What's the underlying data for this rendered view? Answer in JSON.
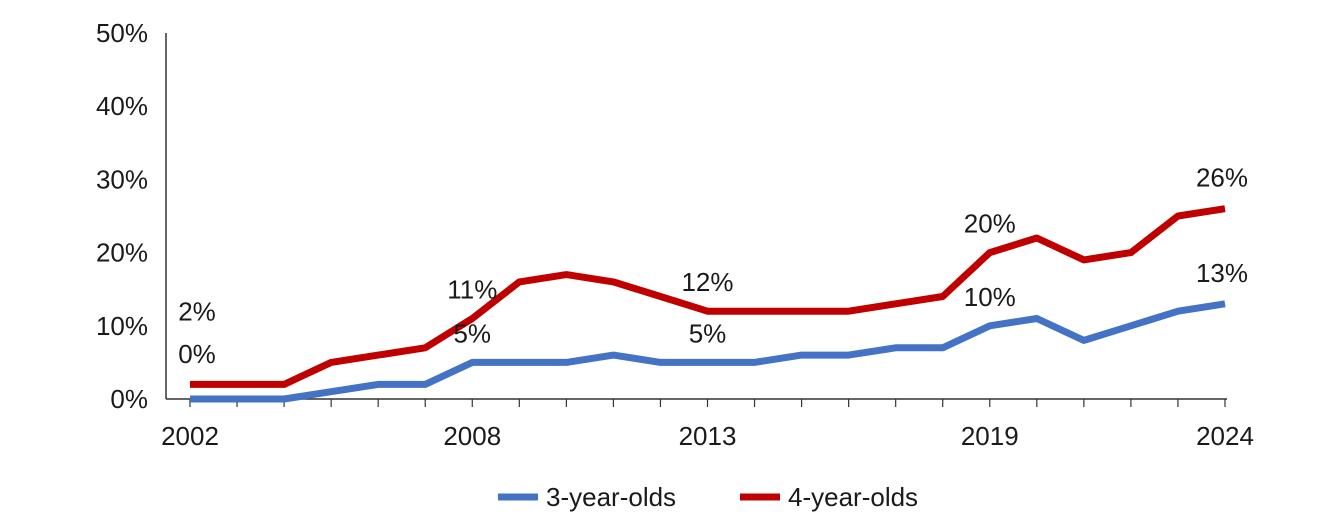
{
  "chart_data": {
    "type": "line",
    "x": [
      2002,
      2003,
      2004,
      2005,
      2006,
      2007,
      2008,
      2009,
      2010,
      2011,
      2012,
      2013,
      2014,
      2015,
      2016,
      2017,
      2018,
      2019,
      2020,
      2021,
      2022,
      2023,
      2024
    ],
    "x_tick_labels": [
      "2002",
      "2008",
      "2013",
      "2019",
      "2024"
    ],
    "x_ticks": [
      2002,
      2008,
      2013,
      2019,
      2024
    ],
    "y_tick_labels": [
      "0%",
      "10%",
      "20%",
      "30%",
      "40%",
      "50%"
    ],
    "ylim": [
      0,
      50
    ],
    "grid": false,
    "legend_position": "bottom",
    "series": [
      {
        "name": "3-year-olds",
        "color": "#4472c4",
        "values": [
          0,
          0,
          0,
          1,
          2,
          2,
          5,
          5,
          5,
          6,
          5,
          5,
          5,
          6,
          6,
          7,
          7,
          10,
          11,
          8,
          10,
          12,
          13
        ],
        "labels": [
          {
            "year": 2002,
            "text": "0%"
          },
          {
            "year": 2008,
            "text": "5%"
          },
          {
            "year": 2013,
            "text": "5%"
          },
          {
            "year": 2019,
            "text": "10%"
          },
          {
            "year": 2024,
            "text": "13%"
          }
        ]
      },
      {
        "name": "4-year-olds",
        "color": "#c00000",
        "values": [
          2,
          2,
          2,
          5,
          6,
          7,
          11,
          16,
          17,
          16,
          14,
          12,
          12,
          12,
          12,
          13,
          14,
          20,
          22,
          19,
          20,
          25,
          26
        ],
        "labels": [
          {
            "year": 2002,
            "text": "2%"
          },
          {
            "year": 2008,
            "text": "11%"
          },
          {
            "year": 2013,
            "text": "12%"
          },
          {
            "year": 2019,
            "text": "20%"
          },
          {
            "year": 2024,
            "text": "26%"
          }
        ]
      }
    ]
  }
}
